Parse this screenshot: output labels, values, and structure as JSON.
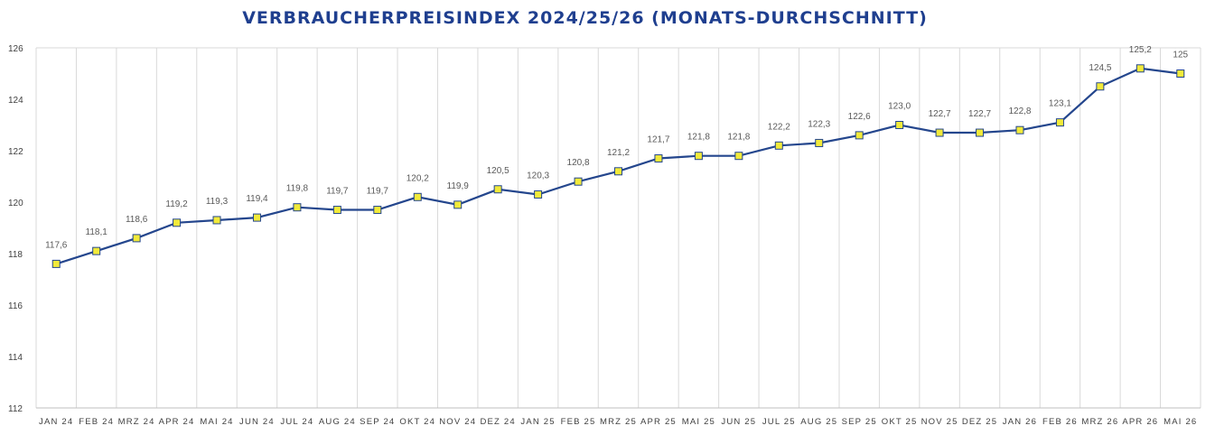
{
  "chart_data": {
    "type": "line",
    "title": "VERBRAUCHERPREISINDEX 2024/25/26 (MONATS-DURCHSCHNITT)",
    "xlabel": "",
    "ylabel": "",
    "ylim": [
      112,
      126
    ],
    "yticks": [
      "112",
      "114",
      "116",
      "118",
      "120",
      "122",
      "124",
      "126"
    ],
    "grid": true,
    "legend": "none",
    "colors": {
      "line": "#24468d",
      "marker_fill": "#f2ea3a",
      "title": "#1f3f8f"
    },
    "categories": [
      "JAN 24",
      "FEB 24",
      "MRZ 24",
      "APR 24",
      "MAI 24",
      "JUN 24",
      "JUL 24",
      "AUG 24",
      "SEP 24",
      "OKT 24",
      "NOV 24",
      "DEZ 24",
      "JAN 25",
      "FEB 25",
      "MRZ 25",
      "APR 25",
      "MAI 25",
      "JUN 25",
      "JUL 25",
      "AUG 25",
      "SEP 25",
      "OKT 25",
      "NOV 25",
      "DEZ 25",
      "JAN 26",
      "FEB 26",
      "MRZ 26",
      "APR 26",
      "MAI 26"
    ],
    "series": [
      {
        "values": [
          117.6,
          118.1,
          118.6,
          119.2,
          119.3,
          119.4,
          119.8,
          119.7,
          119.7,
          120.2,
          119.9,
          120.5,
          120.3,
          120.8,
          121.2,
          121.7,
          121.8,
          121.8,
          122.2,
          122.3,
          122.6,
          123.0,
          122.7,
          122.7,
          122.8,
          123.1,
          124.5,
          125.2,
          125.0
        ],
        "data_labels": [
          "117,6",
          "118,1",
          "118,6",
          "119,2",
          "119,3",
          "119,4",
          "119,8",
          "119,7",
          "119,7",
          "120,2",
          "119,9",
          "120,5",
          "120,3",
          "120,8",
          "121,2",
          "121,7",
          "121,8",
          "121,8",
          "122,2",
          "122,3",
          "122,6",
          "123,0",
          "122,7",
          "122,7",
          "122,8",
          "123,1",
          "124,5",
          "125,2",
          "125"
        ]
      }
    ]
  }
}
